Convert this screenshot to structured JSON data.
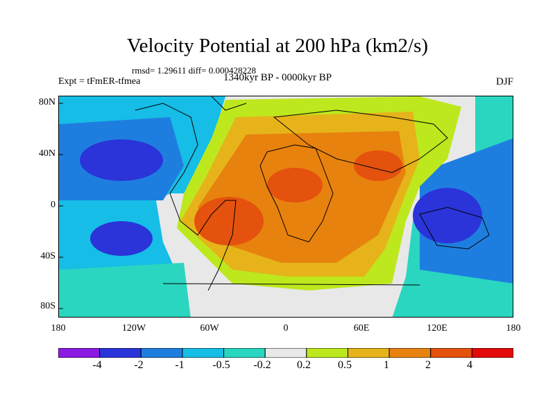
{
  "figure": {
    "title": "Velocity Potential at 200 hPa (km2/s)",
    "stats": "rmsd= 1.29611 diff= 0.000428228",
    "experiment": "Expt = tFmER-tfmea",
    "period": "1340kyr BP - 0000kyr BP",
    "season": "DJF"
  },
  "axes": {
    "lat_labels": [
      "80N",
      "40N",
      "0",
      "40S",
      "80S"
    ],
    "lon_labels": [
      "180",
      "120W",
      "60W",
      "0",
      "60E",
      "120E",
      "180"
    ]
  },
  "colorbar": {
    "levels": [
      "-4",
      "-2",
      "-1",
      "-0.5",
      "-0.2",
      "0.2",
      "0.5",
      "1",
      "2",
      "4"
    ],
    "colors": [
      "#8a1ae0",
      "#2a34d8",
      "#1e7ee0",
      "#16bde6",
      "#2ad6c0",
      "#e8e8e8",
      "#bde81e",
      "#e6b41a",
      "#e8820e",
      "#e4520e",
      "#e40a0a"
    ]
  },
  "map_fill": {
    "ocean": "#e8e8e8",
    "coastline": "#000000"
  }
}
